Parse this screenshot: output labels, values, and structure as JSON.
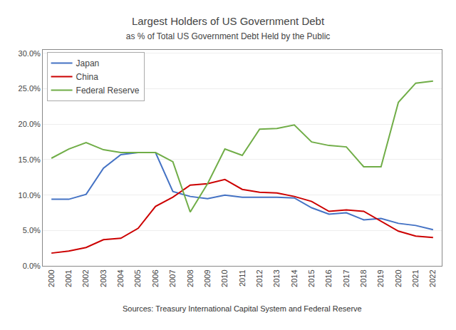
{
  "chart_data": {
    "type": "line",
    "title": "Largest Holders of US Government Debt",
    "subtitle": "as % of Total US Government Debt Held by the Public",
    "annotations": [
      "Sources: Treasury International Capital System and Federal Reserve"
    ],
    "x": [
      2000,
      2001,
      2002,
      2003,
      2004,
      2005,
      2006,
      2007,
      2008,
      2009,
      2010,
      2011,
      2012,
      2013,
      2014,
      2015,
      2016,
      2017,
      2018,
      2019,
      2020,
      2021,
      2022
    ],
    "series": [
      {
        "name": "Japan",
        "color": "#4472C4",
        "values": [
          0.094,
          0.094,
          0.101,
          0.138,
          0.157,
          0.16,
          0.16,
          0.105,
          0.098,
          0.095,
          0.1,
          0.097,
          0.097,
          0.097,
          0.096,
          0.082,
          0.073,
          0.075,
          0.065,
          0.067,
          0.06,
          0.057,
          0.051
        ]
      },
      {
        "name": "China",
        "color": "#CC0000",
        "values": [
          0.018,
          0.021,
          0.026,
          0.037,
          0.039,
          0.053,
          0.084,
          0.097,
          0.114,
          0.116,
          0.122,
          0.108,
          0.104,
          0.103,
          0.098,
          0.091,
          0.077,
          0.079,
          0.077,
          0.063,
          0.049,
          0.042,
          0.04
        ]
      },
      {
        "name": "Federal Reserve",
        "color": "#70AD47",
        "values": [
          0.152,
          0.165,
          0.174,
          0.164,
          0.16,
          0.16,
          0.16,
          0.147,
          0.076,
          0.116,
          0.165,
          0.156,
          0.193,
          0.194,
          0.199,
          0.175,
          0.17,
          0.168,
          0.14,
          0.14,
          0.231,
          0.258,
          0.261
        ]
      }
    ],
    "xlim": [
      1999.5,
      2022.5
    ],
    "xticks": [
      2000,
      2001,
      2002,
      2003,
      2004,
      2005,
      2006,
      2007,
      2008,
      2009,
      2010,
      2011,
      2012,
      2013,
      2014,
      2015,
      2016,
      2017,
      2018,
      2019,
      2020,
      2021,
      2022
    ],
    "ylim": [
      0.0,
      0.305
    ],
    "yticks": [
      {
        "value": 0.0,
        "label": "0.0%"
      },
      {
        "value": 0.05,
        "label": "5.0%"
      },
      {
        "value": 0.1,
        "label": "10.0%"
      },
      {
        "value": 0.15,
        "label": "15.0%"
      },
      {
        "value": 0.2,
        "label": "20.0%"
      },
      {
        "value": 0.25,
        "label": "25.0%"
      },
      {
        "value": 0.3,
        "label": "30.0%"
      }
    ],
    "grid": true,
    "legend": "upper left"
  }
}
